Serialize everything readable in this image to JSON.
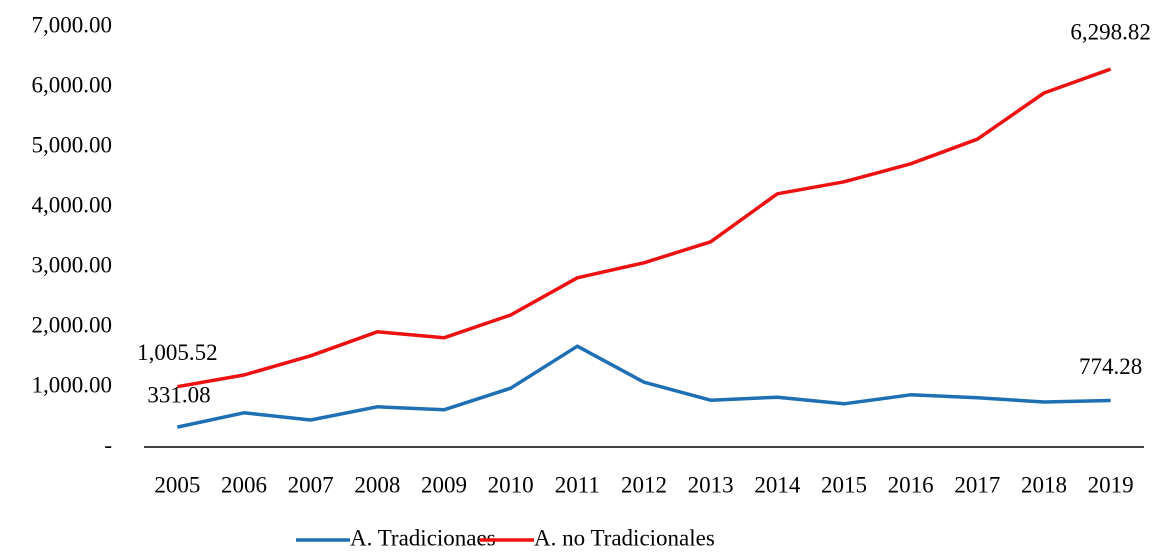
{
  "chart_data": {
    "type": "line",
    "categories": [
      "2005",
      "2006",
      "2007",
      "2008",
      "2009",
      "2010",
      "2011",
      "2012",
      "2013",
      "2014",
      "2015",
      "2016",
      "2017",
      "2018",
      "2019"
    ],
    "series": [
      {
        "name": "A. Tradicionaes",
        "color": "#1f6fb4",
        "values": [
          331.08,
          570,
          450,
          670,
          620,
          980,
          1680,
          1080,
          780,
          830,
          720,
          870,
          820,
          750,
          774.28
        ],
        "value_labels": [
          "331.08",
          null,
          null,
          null,
          null,
          null,
          null,
          null,
          null,
          null,
          null,
          null,
          null,
          null,
          "774.28"
        ]
      },
      {
        "name": "A. no Tradicionales",
        "color": "#ee1111",
        "values": [
          1005.52,
          1200,
          1520,
          1920,
          1820,
          2200,
          2820,
          3070,
          3420,
          4220,
          4420,
          4720,
          5130,
          5900,
          6298.82
        ],
        "value_labels": [
          "1,005.52",
          null,
          null,
          null,
          null,
          null,
          null,
          null,
          null,
          null,
          null,
          null,
          null,
          null,
          "6,298.82"
        ]
      }
    ],
    "ylim": [
      0,
      7000
    ],
    "yticks": [
      {
        "value": 0,
        "label": "-"
      },
      {
        "value": 1000,
        "label": "1,000.00"
      },
      {
        "value": 2000,
        "label": "2,000.00"
      },
      {
        "value": 3000,
        "label": "3,000.00"
      },
      {
        "value": 4000,
        "label": "4,000.00"
      },
      {
        "value": 5000,
        "label": "5,000.00"
      },
      {
        "value": 6000,
        "label": "6,000.00"
      },
      {
        "value": 7000,
        "label": "7,000.00"
      }
    ],
    "grid": false,
    "legend": "bottom"
  }
}
